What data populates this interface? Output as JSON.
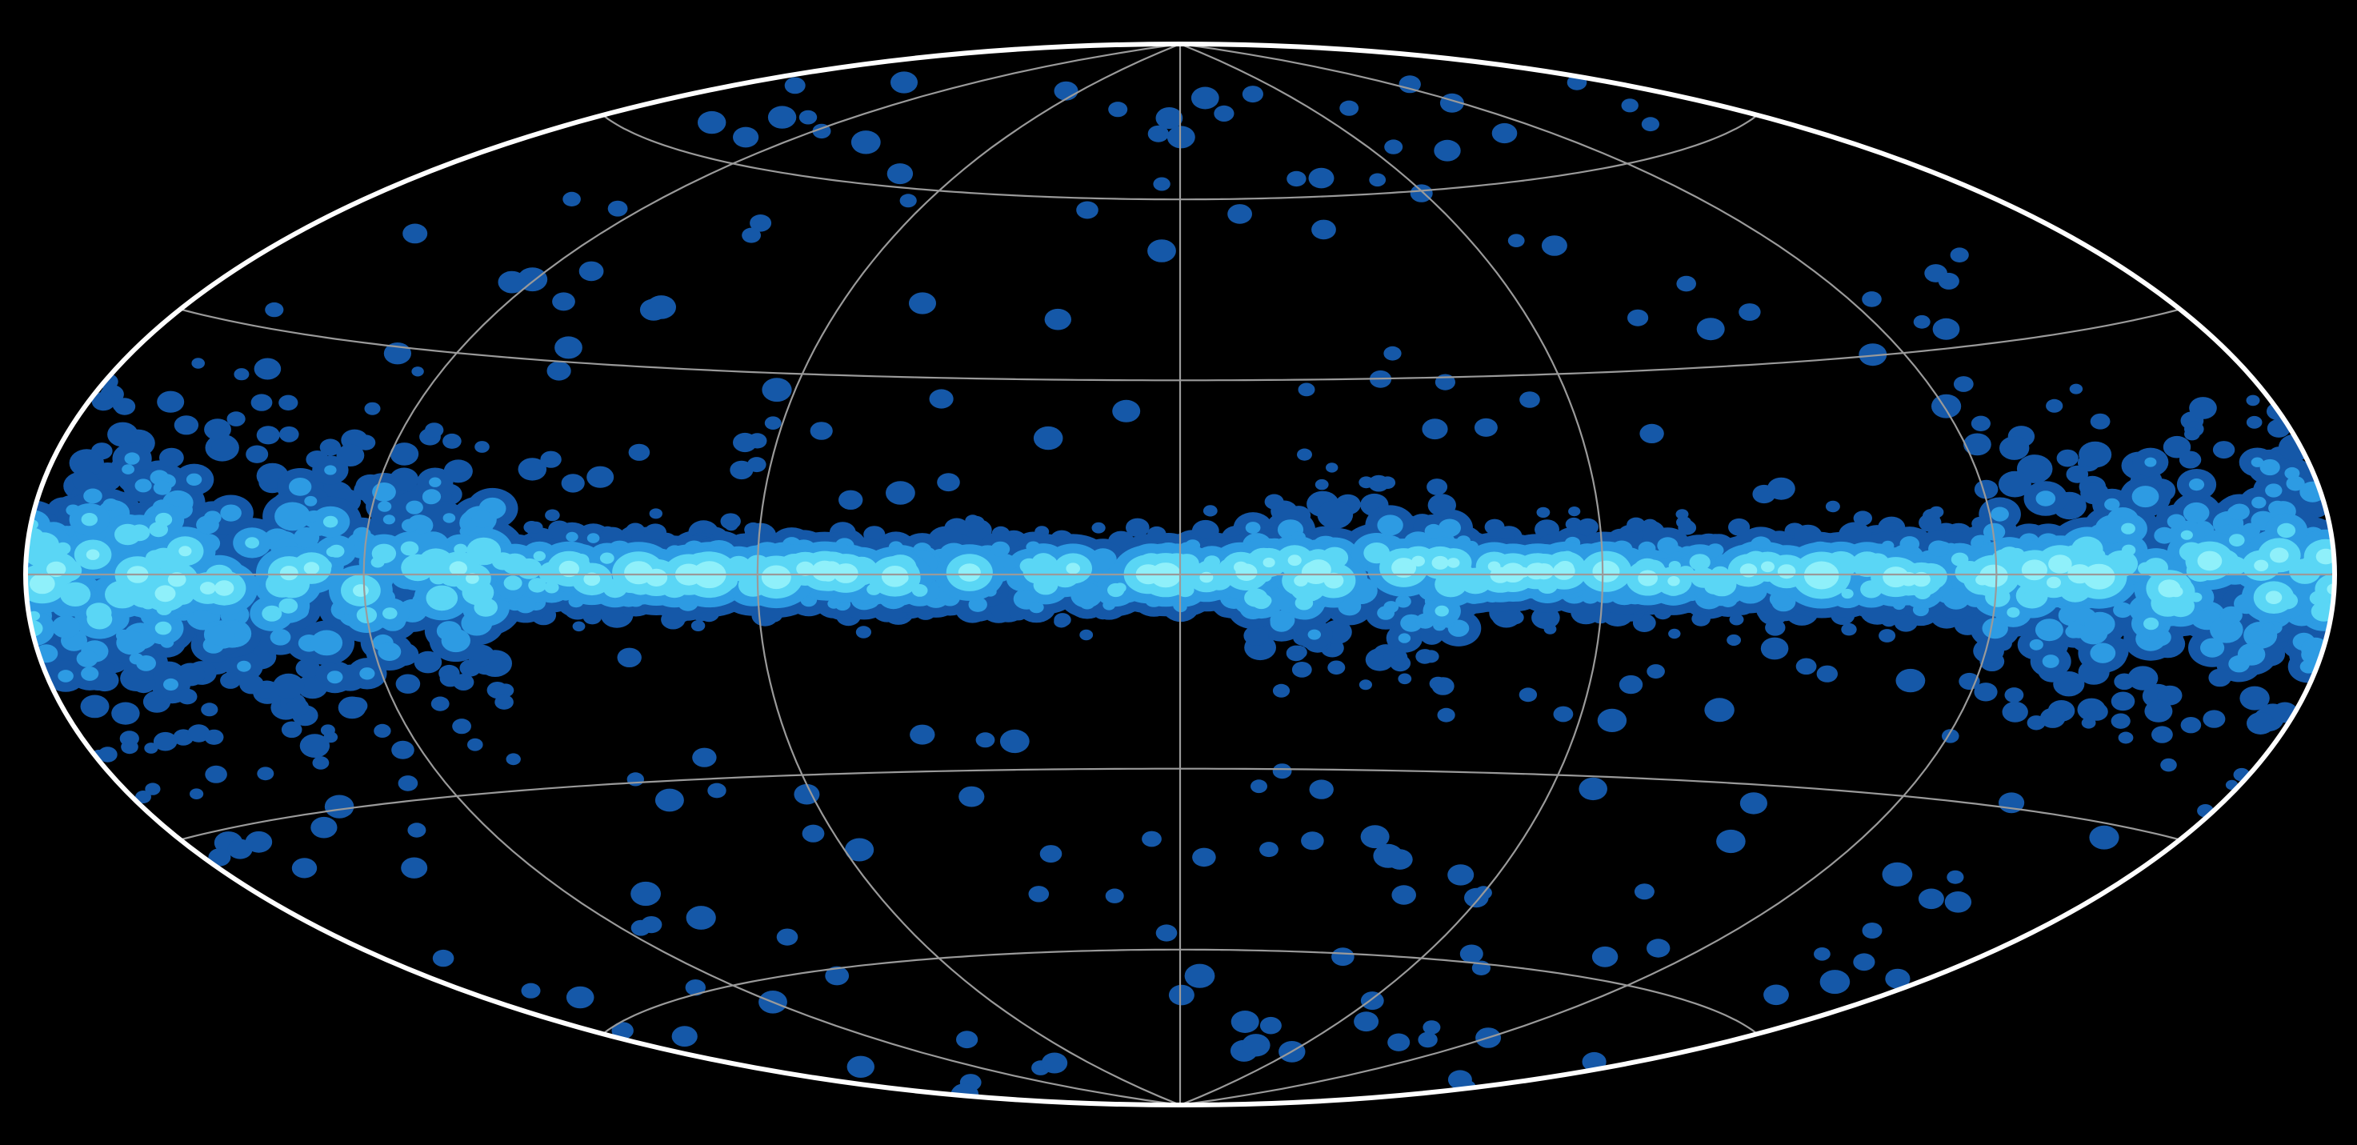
{
  "map": {
    "projection": "hammer-aitoff",
    "coordinate_system": "galactic",
    "graticule": {
      "latitude_step_deg": 30,
      "longitude_step_deg": 60,
      "color": "#9a9a9a"
    },
    "boundary_color": "#ffffff",
    "background": "#000000",
    "contour_levels_colors": [
      "#1558a8",
      "#2d9be3",
      "#5ad6f5",
      "#8ff0fa"
    ],
    "emission_concentration": "galactic-plane"
  }
}
